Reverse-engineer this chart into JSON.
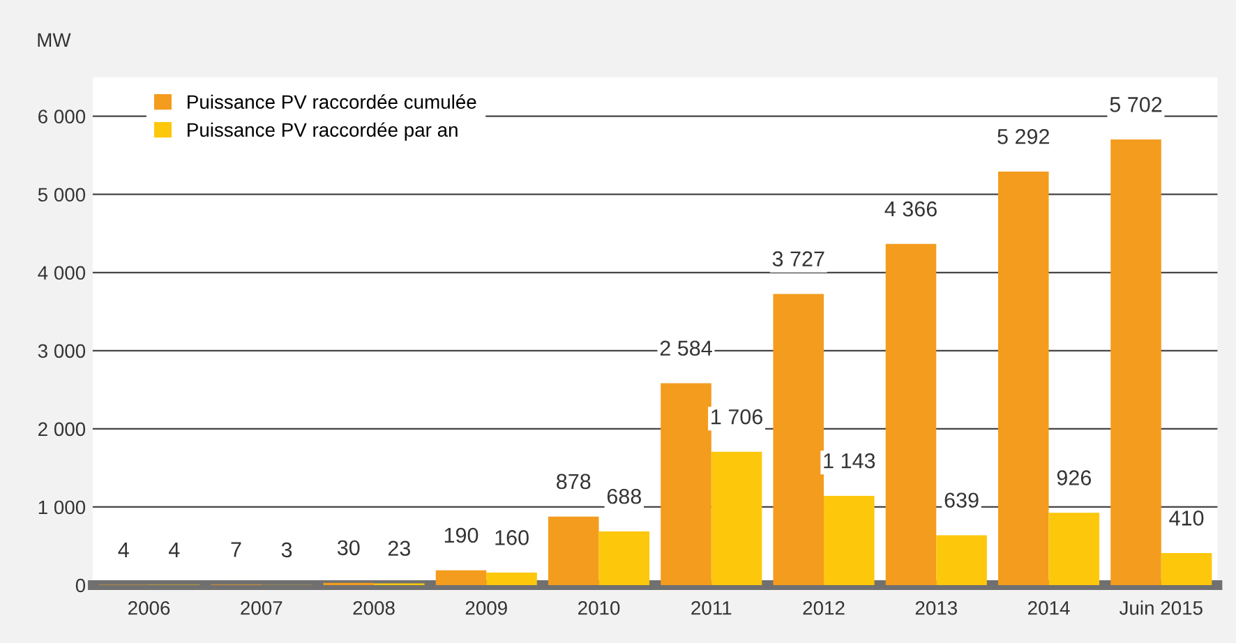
{
  "chart_data": {
    "type": "bar",
    "ylabel": "MW",
    "categories": [
      "2006",
      "2007",
      "2008",
      "2009",
      "2010",
      "2011",
      "2012",
      "2013",
      "2014",
      "Juin 2015"
    ],
    "series": [
      {
        "name": "Puissance PV raccordée cumulée",
        "color": "#f39c1e",
        "values": [
          4,
          7,
          30,
          190,
          878,
          2584,
          3727,
          4366,
          5292,
          5702
        ],
        "value_labels": [
          "4",
          "7",
          "30",
          "190",
          "878",
          "2 584",
          "3 727",
          "4 366",
          "5 292",
          "5 702"
        ]
      },
      {
        "name": "Puissance PV raccordée par an",
        "color": "#fdc70c",
        "values": [
          4,
          3,
          23,
          160,
          688,
          1706,
          1143,
          639,
          926,
          410
        ],
        "value_labels": [
          "4",
          "3",
          "23",
          "160",
          "688",
          "1 706",
          "1 143",
          "639",
          "926",
          "410"
        ]
      }
    ],
    "ylim": [
      0,
      6500
    ],
    "yticks": [
      0,
      {
        "value": 1000,
        "label": "1 000"
      },
      {
        "value": 2000,
        "label": "2 000"
      },
      {
        "value": 3000,
        "label": "3 000"
      },
      {
        "value": 4000,
        "label": "4 000"
      },
      {
        "value": 5000,
        "label": "5 000"
      },
      {
        "value": 6000,
        "label": "6 000"
      }
    ],
    "grid": "y",
    "legend": "top left"
  }
}
